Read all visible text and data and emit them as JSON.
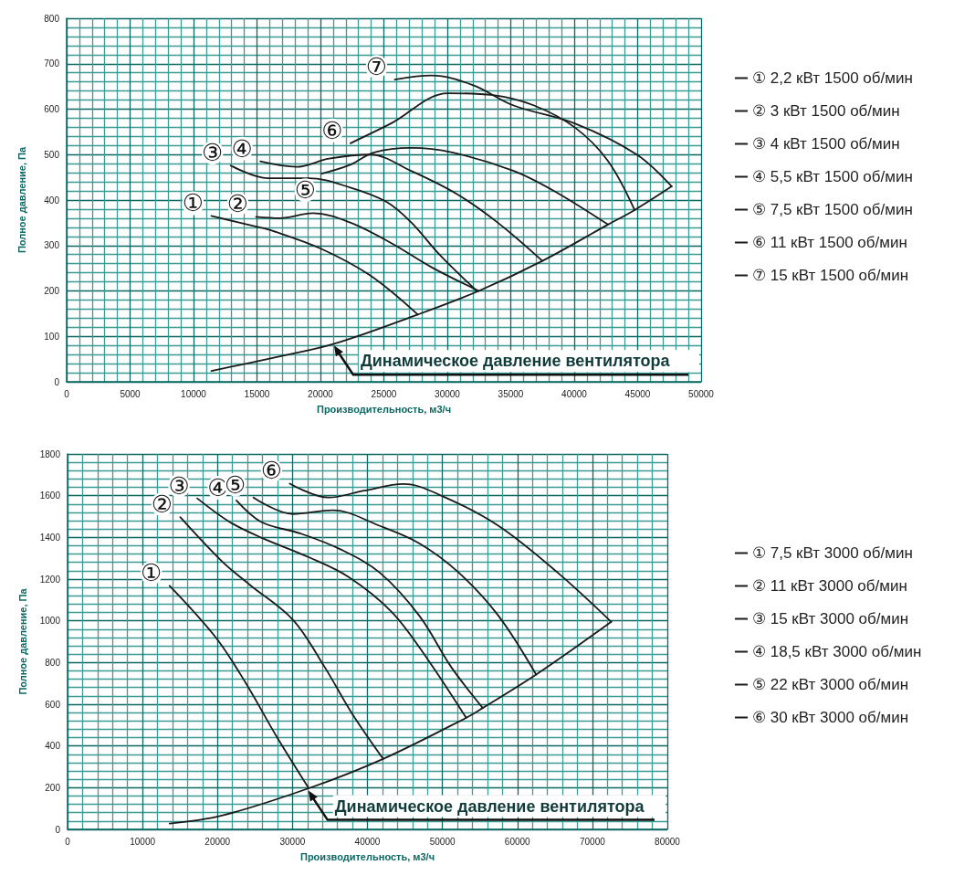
{
  "chart_data": [
    {
      "type": "line",
      "xlabel": "Производительность, м3/ч",
      "ylabel": "Полное давление, Па",
      "xlim": [
        0,
        50000
      ],
      "ylim": [
        0,
        800
      ],
      "xticks": [
        0,
        {
          "value": 1000,
          "label": null
        },
        {
          "value": 2000,
          "label": null
        },
        {
          "value": 3000,
          "label": null
        },
        {
          "value": 4000,
          "label": null
        },
        5000,
        {
          "value": 6000,
          "label": null
        },
        {
          "value": 7000,
          "label": null
        },
        {
          "value": 8000,
          "label": null
        },
        {
          "value": 9000,
          "label": null
        },
        10000,
        {
          "value": 11000,
          "label": null
        },
        {
          "value": 12000,
          "label": null
        },
        {
          "value": 13000,
          "label": null
        },
        {
          "value": 14000,
          "label": null
        },
        15000,
        {
          "value": 16000,
          "label": null
        },
        {
          "value": 17000,
          "label": null
        },
        {
          "value": 18000,
          "label": null
        },
        {
          "value": 19000,
          "label": null
        },
        20000,
        {
          "value": 21000,
          "label": null
        },
        {
          "value": 22000,
          "label": null
        },
        {
          "value": 23000,
          "label": null
        },
        {
          "value": 24000,
          "label": null
        },
        25000,
        {
          "value": 26000,
          "label": null
        },
        {
          "value": 27000,
          "label": null
        },
        {
          "value": 28000,
          "label": null
        },
        {
          "value": 29000,
          "label": null
        },
        30000,
        {
          "value": 31000,
          "label": null
        },
        {
          "value": 32000,
          "label": null
        },
        {
          "value": 33000,
          "label": null
        },
        {
          "value": 34000,
          "label": null
        },
        35000,
        {
          "value": 36000,
          "label": null
        },
        {
          "value": 37000,
          "label": null
        },
        {
          "value": 38000,
          "label": null
        },
        {
          "value": 39000,
          "label": null
        },
        40000,
        {
          "value": 41000,
          "label": null
        },
        {
          "value": 42000,
          "label": null
        },
        {
          "value": 43000,
          "label": null
        },
        {
          "value": 44000,
          "label": null
        },
        45000,
        {
          "value": 46000,
          "label": null
        },
        {
          "value": 47000,
          "label": null
        },
        {
          "value": 48000,
          "label": null
        },
        {
          "value": 49000,
          "label": null
        },
        50000
      ],
      "yticks": [
        0,
        {
          "value": 20,
          "label": null
        },
        {
          "value": 40,
          "label": null
        },
        {
          "value": 60,
          "label": null
        },
        {
          "value": 80,
          "label": null
        },
        100,
        {
          "value": 120,
          "label": null
        },
        {
          "value": 140,
          "label": null
        },
        {
          "value": 160,
          "label": null
        },
        {
          "value": 180,
          "label": null
        },
        200,
        {
          "value": 220,
          "label": null
        },
        {
          "value": 240,
          "label": null
        },
        {
          "value": 260,
          "label": null
        },
        {
          "value": 280,
          "label": null
        },
        300,
        {
          "value": 320,
          "label": null
        },
        {
          "value": 340,
          "label": null
        },
        {
          "value": 360,
          "label": null
        },
        {
          "value": 380,
          "label": null
        },
        400,
        {
          "value": 420,
          "label": null
        },
        {
          "value": 440,
          "label": null
        },
        {
          "value": 460,
          "label": null
        },
        {
          "value": 480,
          "label": null
        },
        500,
        {
          "value": 520,
          "label": null
        },
        {
          "value": 540,
          "label": null
        },
        {
          "value": 560,
          "label": null
        },
        {
          "value": 580,
          "label": null
        },
        600,
        {
          "value": 620,
          "label": null
        },
        {
          "value": 640,
          "label": null
        },
        {
          "value": 660,
          "label": null
        },
        {
          "value": 680,
          "label": null
        },
        700,
        {
          "value": 720,
          "label": null
        },
        {
          "value": 740,
          "label": null
        },
        {
          "value": 760,
          "label": null
        },
        {
          "value": 780,
          "label": null
        },
        800
      ],
      "grid": true,
      "legend": "right",
      "series": [
        {
          "name": "① 2,2 кВт 1500 об/мин",
          "color": "#1a1a1a",
          "x": [
            11400,
            14870,
            16160,
            20040,
            23920,
            27670
          ],
          "values": [
            365,
            342,
            333,
            293,
            234,
            148
          ]
        },
        {
          "name": "② 3 кВт 1500 об/мин",
          "color": "#1a1a1a",
          "x": [
            14930,
            16810,
            19390,
            22300,
            25530,
            28760,
            32480
          ],
          "values": [
            363,
            360,
            371,
            351,
            306,
            252,
            200
          ]
        },
        {
          "name": "③ 4 кВт 1500 об/мин",
          "color": "#1a1a1a",
          "x": [
            12930,
            15840,
            19070,
            22300,
            25210,
            27150,
            29410,
            32320
          ],
          "values": [
            476,
            448,
            448,
            428,
            396,
            351,
            279,
            200
          ]
        },
        {
          "name": "④ 5,5 кВт 1500 об/мин",
          "color": "#1a1a1a",
          "x": [
            15260,
            18100,
            20680,
            23920,
            27150,
            30700,
            33940,
            37490
          ],
          "values": [
            485,
            473,
            491,
            500,
            464,
            414,
            351,
            266
          ]
        },
        {
          "name": "⑤ 7,5 кВт 1500 об/мин",
          "color": "#1a1a1a",
          "x": [
            20100,
            22300,
            24240,
            27150,
            30380,
            35230,
            38460,
            42660
          ],
          "values": [
            458,
            477,
            505,
            515,
            505,
            464,
            419,
            346
          ]
        },
        {
          "name": "⑥ 11 кВт 1500 об/мин",
          "color": "#1a1a1a",
          "x": [
            22370,
            25530,
            30060,
            33610,
            36840,
            40080,
            42660,
            44760
          ],
          "values": [
            525,
            568,
            635,
            631,
            608,
            559,
            486,
            378
          ]
        },
        {
          "name": "⑦ 15 кВт 1500 об/мин",
          "color": "#1a1a1a",
          "x": [
            25860,
            28760,
            32000,
            35230,
            40080,
            44930,
            47680
          ],
          "values": [
            665,
            674,
            653,
            608,
            568,
            500,
            430
          ]
        },
        {
          "color": "#1a1a1a",
          "x": [
            11410,
            16480,
            21010,
            27670,
            32480,
            37490,
            42660,
            44760,
            47680
          ],
          "values": [
            24,
            54,
            83,
            148,
            200,
            266,
            346,
            378,
            430
          ]
        }
      ],
      "annotations": [
        "①",
        "②",
        "③",
        "④",
        "⑤",
        "⑥",
        "⑦",
        {
          "text": "Динамическое давление вентилятора",
          "x": 21000,
          "y": 82
        }
      ]
    },
    {
      "type": "line",
      "xlabel": "Производительность, м3/ч",
      "ylabel": "Полное давление, Па",
      "xlim": [
        0,
        80000
      ],
      "ylim": [
        0,
        1800
      ],
      "xticks": [
        0,
        {
          "value": 2000,
          "label": null
        },
        {
          "value": 4000,
          "label": null
        },
        {
          "value": 6000,
          "label": null
        },
        {
          "value": 8000,
          "label": null
        },
        10000,
        {
          "value": 12000,
          "label": null
        },
        {
          "value": 14000,
          "label": null
        },
        {
          "value": 16000,
          "label": null
        },
        {
          "value": 18000,
          "label": null
        },
        20000,
        {
          "value": 22000,
          "label": null
        },
        {
          "value": 24000,
          "label": null
        },
        {
          "value": 26000,
          "label": null
        },
        {
          "value": 28000,
          "label": null
        },
        30000,
        {
          "value": 32000,
          "label": null
        },
        {
          "value": 34000,
          "label": null
        },
        {
          "value": 36000,
          "label": null
        },
        {
          "value": 38000,
          "label": null
        },
        40000,
        {
          "value": 42000,
          "label": null
        },
        {
          "value": 44000,
          "label": null
        },
        {
          "value": 46000,
          "label": null
        },
        {
          "value": 48000,
          "label": null
        },
        50000,
        {
          "value": 52000,
          "label": null
        },
        {
          "value": 54000,
          "label": null
        },
        {
          "value": 56000,
          "label": null
        },
        {
          "value": 58000,
          "label": null
        },
        60000,
        {
          "value": 62000,
          "label": null
        },
        {
          "value": 64000,
          "label": null
        },
        {
          "value": 66000,
          "label": null
        },
        {
          "value": 68000,
          "label": null
        },
        70000,
        {
          "value": 72000,
          "label": null
        },
        {
          "value": 74000,
          "label": null
        },
        {
          "value": 76000,
          "label": null
        },
        {
          "value": 78000,
          "label": null
        },
        80000
      ],
      "yticks": [
        0,
        {
          "value": 40,
          "label": null
        },
        {
          "value": 80,
          "label": null
        },
        {
          "value": 120,
          "label": null
        },
        {
          "value": 160,
          "label": null
        },
        200,
        {
          "value": 240,
          "label": null
        },
        {
          "value": 280,
          "label": null
        },
        {
          "value": 320,
          "label": null
        },
        {
          "value": 360,
          "label": null
        },
        400,
        {
          "value": 440,
          "label": null
        },
        {
          "value": 480,
          "label": null
        },
        {
          "value": 520,
          "label": null
        },
        {
          "value": 560,
          "label": null
        },
        600,
        {
          "value": 640,
          "label": null
        },
        {
          "value": 680,
          "label": null
        },
        {
          "value": 720,
          "label": null
        },
        {
          "value": 760,
          "label": null
        },
        800,
        {
          "value": 840,
          "label": null
        },
        {
          "value": 880,
          "label": null
        },
        {
          "value": 920,
          "label": null
        },
        {
          "value": 960,
          "label": null
        },
        1000,
        {
          "value": 1040,
          "label": null
        },
        {
          "value": 1080,
          "label": null
        },
        {
          "value": 1120,
          "label": null
        },
        {
          "value": 1160,
          "label": null
        },
        1200,
        {
          "value": 1240,
          "label": null
        },
        {
          "value": 1280,
          "label": null
        },
        {
          "value": 1320,
          "label": null
        },
        {
          "value": 1360,
          "label": null
        },
        1400,
        {
          "value": 1440,
          "label": null
        },
        {
          "value": 1480,
          "label": null
        },
        {
          "value": 1520,
          "label": null
        },
        {
          "value": 1560,
          "label": null
        },
        1600,
        {
          "value": 1640,
          "label": null
        },
        {
          "value": 1680,
          "label": null
        },
        {
          "value": 1720,
          "label": null
        },
        {
          "value": 1760,
          "label": null
        },
        1800
      ],
      "grid": true,
      "legend": "right",
      "series": [
        {
          "name": "① 7,5 кВт 3000 об/мин",
          "color": "#1a1a1a",
          "x": [
            13610,
            19780,
            23730,
            27950,
            32170
          ],
          "values": [
            1168,
            920,
            704,
            441,
            197
          ]
        },
        {
          "name": "② 11 кВт 3000 об/мин",
          "color": "#1a1a1a",
          "x": [
            15030,
            20570,
            24260,
            30060,
            34280,
            37970,
            42090
          ],
          "values": [
            1497,
            1286,
            1174,
            1005,
            779,
            554,
            338
          ]
        },
        {
          "name": "③ 15 кВт 3000 об/мин",
          "color": "#1a1a1a",
          "x": [
            17300,
            21620,
            25840,
            32170,
            37450,
            43250,
            48000,
            53160
          ],
          "values": [
            1587,
            1474,
            1399,
            1305,
            1211,
            1042,
            817,
            535
          ]
        },
        {
          "name": "④ 18,5 кВт 3000 об/мин",
          "color": "#1a1a1a",
          "x": [
            22520,
            25840,
            31120,
            36390,
            41670,
            46940,
            51160,
            55380
          ],
          "values": [
            1577,
            1474,
            1418,
            1343,
            1230,
            1023,
            779,
            582
          ]
        },
        {
          "name": "⑤ 22 кВт 3000 об/мин",
          "color": "#1a1a1a",
          "x": [
            24790,
            30060,
            35340,
            41670,
            46940,
            52210,
            57490,
            62500
          ],
          "values": [
            1591,
            1512,
            1530,
            1455,
            1371,
            1230,
            1023,
            742
          ]
        },
        {
          "name": "⑥ 30 кВт 3000 об/мин",
          "color": "#1a1a1a",
          "x": [
            29640,
            34810,
            39560,
            44830,
            50110,
            57490,
            65400,
            72520
          ],
          "values": [
            1658,
            1591,
            1624,
            1656,
            1596,
            1455,
            1230,
            995
          ]
        },
        {
          "color": "#1a1a1a",
          "x": [
            13610,
            20570,
            32170,
            42090,
            53160,
            55380,
            62500,
            72520
          ],
          "values": [
            28,
            66,
            197,
            338,
            535,
            582,
            742,
            995
          ]
        }
      ],
      "annotations": [
        "①",
        "②",
        "③",
        "④",
        "⑤",
        "⑥",
        {
          "text": "Динамическое давление вентилятора",
          "x": 32000,
          "y": 190
        }
      ]
    }
  ]
}
